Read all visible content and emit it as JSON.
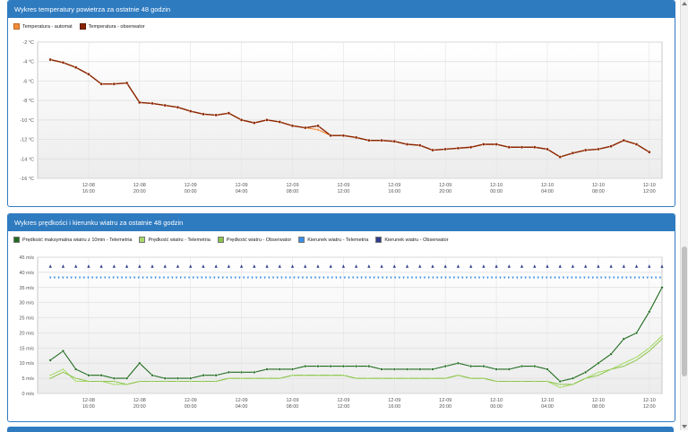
{
  "colors": {
    "header": "#2f7bc0",
    "temp_automat": "#f08c3c",
    "temp_obs": "#8b2500",
    "wind_max": "#1f6b1f",
    "wind_tel": "#a6d96a",
    "wind_obs": "#8bc34a",
    "dir_tel": "#3a8ee6",
    "dir_obs": "#2e3e8c"
  },
  "panel1": {
    "title": "Wykres temperatury powietrza za ostatnie 48 godzin"
  },
  "panel2": {
    "title": "Wykres prędkości i kierunku wiatru za ostatnie 48 godzin"
  },
  "x_ticks": [
    {
      "l1": "12-08",
      "l2": "16:00"
    },
    {
      "l1": "12-08",
      "l2": "20:00"
    },
    {
      "l1": "12-09",
      "l2": "00:00"
    },
    {
      "l1": "12-09",
      "l2": "04:00"
    },
    {
      "l1": "12-09",
      "l2": "08:00"
    },
    {
      "l1": "12-09",
      "l2": "12:00"
    },
    {
      "l1": "12-09",
      "l2": "16:00"
    },
    {
      "l1": "12-09",
      "l2": "20:00"
    },
    {
      "l1": "12-10",
      "l2": "00:00"
    },
    {
      "l1": "12-10",
      "l2": "04:00"
    },
    {
      "l1": "12-10",
      "l2": "08:00"
    },
    {
      "l1": "12-10",
      "l2": "12:00"
    }
  ],
  "chart_data": [
    {
      "type": "line",
      "title": "Wykres temperatury powietrza za ostatnie 48 godzin",
      "y_ticks": [
        "-2 °C",
        "-4 °C",
        "-6 °C",
        "-8 °C",
        "-10 °C",
        "-12 °C",
        "-14 °C",
        "-16 °C"
      ],
      "ylim": [
        -16,
        -2
      ],
      "x_hours": [
        13,
        14,
        15,
        16,
        17,
        18,
        19,
        20,
        21,
        22,
        23,
        24,
        25,
        26,
        27,
        28,
        29,
        30,
        31,
        32,
        33,
        34,
        35,
        36,
        37,
        38,
        39,
        40,
        41,
        42,
        43,
        44,
        45,
        46,
        47,
        48,
        49,
        50,
        51,
        52,
        53,
        54,
        55,
        56,
        57,
        58,
        59,
        60
      ],
      "series": [
        {
          "name": "Temperatura - automat",
          "values": [
            -3.8,
            -4.1,
            -4.6,
            -5.3,
            -6.3,
            -6.3,
            -6.2,
            -8.2,
            -8.3,
            -8.5,
            -8.7,
            -9.1,
            -9.4,
            -9.5,
            -9.3,
            -10.0,
            -10.3,
            -10.0,
            -10.2,
            -10.6,
            -10.8,
            -11.0,
            -11.6,
            -11.6,
            -11.8,
            -12.1,
            -12.1,
            -12.2,
            -12.5,
            -12.6,
            -13.1,
            -13.0,
            -12.9,
            -12.8,
            -12.5,
            -12.5,
            -12.8,
            -12.8,
            -12.8,
            -13.0,
            -13.8,
            -13.4,
            -13.1,
            -13.0,
            -12.7,
            -12.1,
            -12.5,
            -13.3
          ]
        },
        {
          "name": "Temperatura - obserwator",
          "values": [
            -3.8,
            -4.1,
            -4.6,
            -5.3,
            -6.3,
            -6.3,
            -6.2,
            -8.2,
            -8.3,
            -8.5,
            -8.7,
            -9.1,
            -9.4,
            -9.5,
            -9.3,
            -10.0,
            -10.3,
            -10.0,
            -10.2,
            -10.6,
            -10.8,
            -10.6,
            -11.6,
            -11.6,
            -11.8,
            -12.1,
            -12.1,
            -12.2,
            -12.5,
            -12.6,
            -13.1,
            -13.0,
            -12.9,
            -12.8,
            -12.5,
            -12.5,
            -12.8,
            -12.8,
            -12.8,
            -13.0,
            -13.8,
            -13.4,
            -13.1,
            -13.0,
            -12.7,
            -12.1,
            -12.5,
            -13.3
          ]
        }
      ]
    },
    {
      "type": "line",
      "title": "Wykres prędkości i kierunku wiatru za ostatnie 48 godzin",
      "y_ticks": [
        "45 m/s",
        "40 m/s",
        "35 m/s",
        "30 m/s",
        "25 m/s",
        "20 m/s",
        "15 m/s",
        "10 m/s",
        "5 m/s",
        "0 m/s"
      ],
      "ylim": [
        0,
        45
      ],
      "x_hours": [
        13,
        14,
        15,
        16,
        17,
        18,
        19,
        20,
        21,
        22,
        23,
        24,
        25,
        26,
        27,
        28,
        29,
        30,
        31,
        32,
        33,
        34,
        35,
        36,
        37,
        38,
        39,
        40,
        41,
        42,
        43,
        44,
        45,
        46,
        47,
        48,
        49,
        50,
        51,
        52,
        53,
        54,
        55,
        56,
        57,
        58,
        59,
        60,
        61
      ],
      "series": [
        {
          "name": "Prędkość maksymalna wiatru z 10min - Telemetria",
          "values": [
            11,
            14,
            8,
            6,
            6,
            5,
            5,
            10,
            6,
            5,
            5,
            5,
            6,
            6,
            7,
            7,
            7,
            8,
            8,
            8,
            9,
            9,
            9,
            9,
            9,
            9,
            8,
            8,
            8,
            8,
            8,
            9,
            10,
            9,
            9,
            8,
            8,
            9,
            9,
            8,
            4,
            5,
            7,
            10,
            13,
            18,
            20,
            27,
            35
          ]
        },
        {
          "name": "Prędkość wiatru - Telemetria",
          "values": [
            6,
            8,
            4,
            4,
            4,
            3,
            3,
            4,
            4,
            4,
            4,
            4,
            4,
            4,
            5,
            5,
            5,
            5,
            5,
            6,
            6,
            6,
            6,
            6,
            5,
            5,
            5,
            5,
            5,
            5,
            5,
            5,
            6,
            5,
            5,
            4,
            4,
            4,
            4,
            4,
            2,
            3,
            5,
            7,
            8,
            10,
            12,
            15,
            19
          ]
        },
        {
          "name": "Prędkość wiatru - Obserwator",
          "values": [
            5,
            7,
            5,
            4,
            4,
            4,
            3,
            4,
            4,
            4,
            4,
            4,
            4,
            4,
            5,
            5,
            5,
            5,
            5,
            6,
            6,
            6,
            6,
            6,
            5,
            5,
            5,
            5,
            5,
            5,
            5,
            5,
            6,
            5,
            5,
            4,
            4,
            4,
            4,
            4,
            3,
            3,
            5,
            6,
            8,
            9,
            11,
            14,
            18
          ]
        },
        {
          "name": "Kierunek wiatru - Telemetria",
          "values": []
        },
        {
          "name": "Kierunek wiatru - Obserwator",
          "values": []
        }
      ]
    }
  ]
}
